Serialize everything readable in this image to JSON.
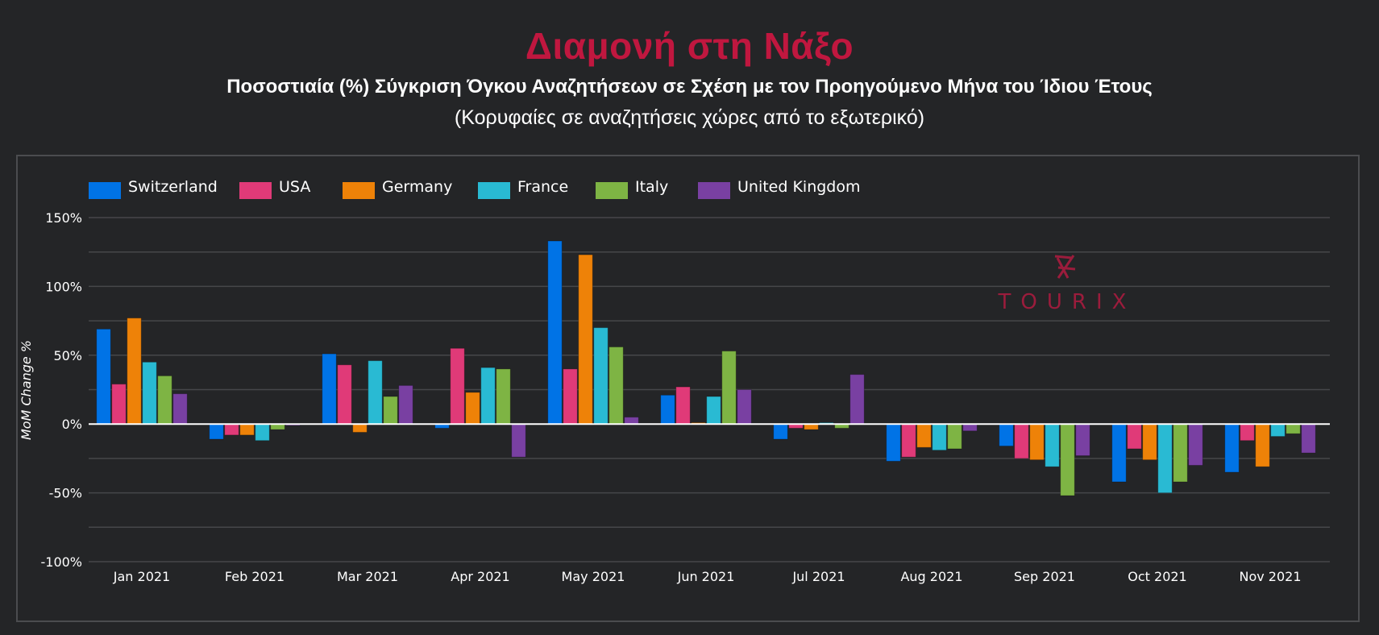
{
  "header": {
    "title": "Διαμονή στη Νάξο",
    "subtitle": "Ποσοστιαία (%) Σύγκριση Όγκου Αναζητήσεων σε Σχέση με τον Προηγούμενο Μήνα του Ίδιου Έτους",
    "subtitle2": "(Κορυφαίες σε αναζητήσεις χώρες από το εξωτερικό)"
  },
  "watermark": {
    "text": "TOURIX",
    "icon": "tourix-logo-icon"
  },
  "chart_data": {
    "type": "bar",
    "title": "Διαμονή στη Νάξο",
    "xlabel": "",
    "ylabel": "MoM Change %",
    "ylim": [
      -100,
      150
    ],
    "yticks": [
      150,
      100,
      50,
      0,
      -50,
      -100
    ],
    "ytick_labels": [
      "150%",
      "100%",
      "50%",
      "0%",
      "-50%",
      "-100%"
    ],
    "minor_grid_step": 25,
    "grid": true,
    "legend_position": "top-left",
    "categories": [
      "Jan 2021",
      "Feb 2021",
      "Mar 2021",
      "Apr 2021",
      "May 2021",
      "Jun 2021",
      "Jul 2021",
      "Aug 2021",
      "Sep 2021",
      "Oct 2021",
      "Nov 2021"
    ],
    "series": [
      {
        "name": "Switzerland",
        "color": "#0073e6",
        "values": [
          69,
          -11,
          51,
          -3,
          133,
          21,
          -11,
          -27,
          -16,
          -42,
          -35
        ]
      },
      {
        "name": "USA",
        "color": "#e03a78",
        "values": [
          29,
          -8,
          43,
          55,
          40,
          27,
          -3,
          -24,
          -25,
          -18,
          -12
        ]
      },
      {
        "name": "Germany",
        "color": "#ee8208",
        "values": [
          77,
          -8,
          -6,
          23,
          123,
          1,
          -4,
          -17,
          -26,
          -26,
          -31
        ]
      },
      {
        "name": "France",
        "color": "#29bad3",
        "values": [
          45,
          -12,
          46,
          41,
          70,
          20,
          1,
          -19,
          -31,
          -50,
          -9
        ]
      },
      {
        "name": "Italy",
        "color": "#7eb444",
        "values": [
          35,
          -4,
          20,
          40,
          56,
          53,
          -3,
          -18,
          -52,
          -42,
          -7
        ]
      },
      {
        "name": "United Kingdom",
        "color": "#7940a2",
        "values": [
          22,
          -1,
          28,
          -24,
          5,
          25,
          36,
          -5,
          -23,
          -30,
          -21
        ]
      }
    ]
  }
}
